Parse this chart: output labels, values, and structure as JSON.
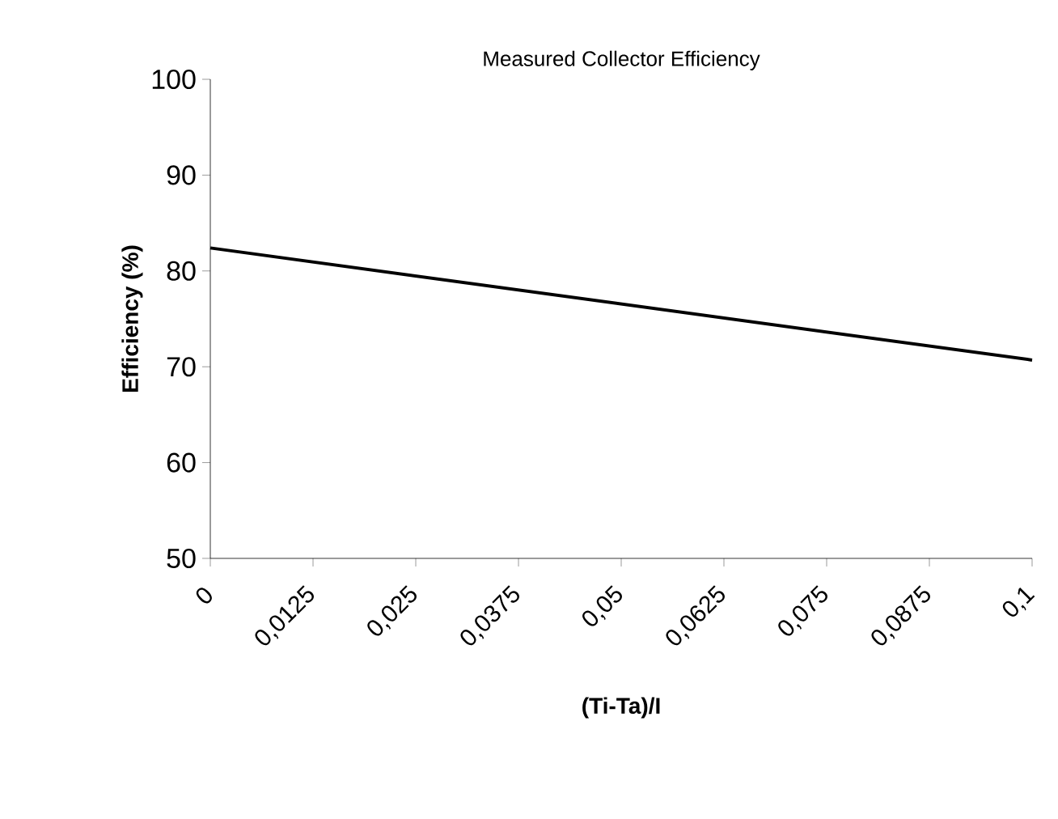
{
  "chart_data": {
    "type": "line",
    "title": "Measured Collector Efficiency",
    "xlabel": "(Ti-Ta)/I",
    "ylabel": "Efficiency (%)",
    "x": [
      0,
      0.1
    ],
    "series": [
      {
        "color": "#000000",
        "values": [
          82.4,
          70.7
        ]
      }
    ],
    "xlim": [
      0,
      0.1
    ],
    "ylim": [
      50,
      100
    ],
    "xticks": [
      {
        "value": 0,
        "label": "0"
      },
      {
        "value": 0.0125,
        "label": "0,0125"
      },
      {
        "value": 0.025,
        "label": "0,025"
      },
      {
        "value": 0.0375,
        "label": "0,0375"
      },
      {
        "value": 0.05,
        "label": "0,05"
      },
      {
        "value": 0.0625,
        "label": "0,0625"
      },
      {
        "value": 0.075,
        "label": "0,075"
      },
      {
        "value": 0.0875,
        "label": "0,0875"
      },
      {
        "value": 0.1,
        "label": "0,1"
      }
    ],
    "yticks": [
      50,
      60,
      70,
      80,
      90,
      100
    ],
    "grid": false,
    "marker": "none",
    "line_style": "solid"
  }
}
